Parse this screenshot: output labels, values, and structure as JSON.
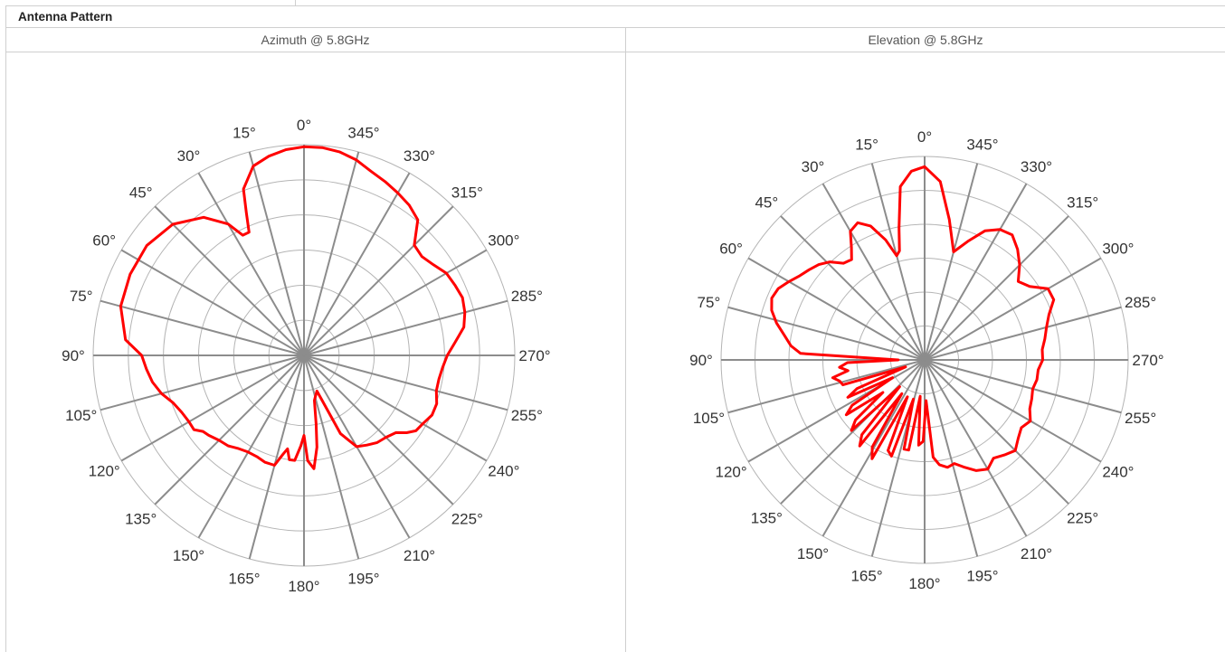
{
  "section": {
    "title": "Antenna Pattern"
  },
  "columns": [
    {
      "title": "Azimuth @ 5.8GHz"
    },
    {
      "title": "Elevation @ 5.8GHz"
    }
  ],
  "colors": {
    "pattern": "#ff0000",
    "spoke": "#8c8c8c",
    "ring": "#b4b4b4",
    "grid_border": "#cfcfcf"
  },
  "chart_data": [
    {
      "type": "polar-line",
      "title": "Azimuth @ 5.8GHz",
      "angle_labels": [
        "0°",
        "15°",
        "30°",
        "45°",
        "60°",
        "75°",
        "90°",
        "105°",
        "120°",
        "135°",
        "150°",
        "165°",
        "180°",
        "195°",
        "210°",
        "225°",
        "240°",
        "255°",
        "270°",
        "285°",
        "300°",
        "315°",
        "330°",
        "345°"
      ],
      "angle_direction": "clockwise-labels-counterclockwise",
      "rings": 6,
      "radial_range": [
        0,
        1
      ],
      "series": [
        {
          "angles": [
            0,
            5,
            10,
            15,
            20,
            22,
            24,
            27,
            30,
            36,
            45,
            55,
            65,
            75,
            85,
            90,
            95,
            100,
            105,
            110,
            115,
            120,
            124,
            127,
            130,
            135,
            140,
            145,
            150,
            155,
            160,
            165,
            168,
            170,
            172,
            175,
            178,
            180,
            182,
            185,
            188,
            190,
            193,
            196,
            200,
            205,
            210,
            215,
            220,
            225,
            230,
            233,
            236,
            240,
            245,
            250,
            255,
            260,
            265,
            270,
            275,
            280,
            285,
            290,
            295,
            300,
            305,
            310,
            315,
            320,
            325,
            330,
            335,
            340,
            345,
            350,
            355,
            360
          ],
          "values": [
            0.99,
            0.98,
            0.96,
            0.93,
            0.84,
            0.73,
            0.64,
            0.64,
            0.72,
            0.81,
            0.88,
            0.91,
            0.91,
            0.9,
            0.85,
            0.77,
            0.75,
            0.73,
            0.7,
            0.66,
            0.64,
            0.63,
            0.63,
            0.6,
            0.59,
            0.57,
            0.56,
            0.54,
            0.53,
            0.53,
            0.54,
            0.54,
            0.48,
            0.45,
            0.5,
            0.5,
            0.43,
            0.38,
            0.5,
            0.54,
            0.44,
            0.33,
            0.22,
            0.2,
            0.18,
            0.41,
            0.5,
            0.52,
            0.54,
            0.55,
            0.57,
            0.61,
            0.64,
            0.65,
            0.67,
            0.67,
            0.65,
            0.65,
            0.66,
            0.68,
            0.72,
            0.77,
            0.79,
            0.8,
            0.79,
            0.78,
            0.75,
            0.73,
            0.74,
            0.84,
            0.87,
            0.89,
            0.91,
            0.93,
            0.96,
            0.98,
            0.99,
            0.99
          ]
        }
      ]
    },
    {
      "type": "polar-line",
      "title": "Elevation @ 5.8GHz",
      "angle_labels": [
        "0°",
        "15°",
        "30°",
        "45°",
        "60°",
        "75°",
        "90°",
        "105°",
        "120°",
        "135°",
        "150°",
        "165°",
        "180°",
        "195°",
        "210°",
        "225°",
        "240°",
        "255°",
        "270°",
        "285°",
        "300°",
        "315°",
        "330°",
        "345°"
      ],
      "angle_direction": "clockwise-labels-counterclockwise",
      "rings": 6,
      "radial_range": [
        0,
        1
      ],
      "series": [
        {
          "angles": [
            0,
            4,
            8,
            11,
            13,
            15,
            18,
            22,
            26,
            30,
            33,
            36,
            40,
            44,
            48,
            52,
            56,
            60,
            64,
            68,
            72,
            76,
            80,
            84,
            87,
            90,
            92,
            95,
            98,
            101,
            104,
            107,
            110,
            113,
            116,
            119,
            122,
            125,
            128,
            131,
            134,
            137,
            140,
            143,
            146,
            149,
            152,
            155,
            158,
            161,
            164,
            167,
            170,
            173,
            176,
            179,
            182,
            185,
            188,
            192,
            196,
            200,
            205,
            210,
            215,
            220,
            225,
            230,
            235,
            240,
            245,
            250,
            255,
            260,
            265,
            270,
            275,
            280,
            285,
            290,
            295,
            300,
            305,
            310,
            315,
            320,
            325,
            330,
            335,
            340,
            345,
            350,
            355,
            360
          ],
          "values": [
            0.95,
            0.93,
            0.86,
            0.66,
            0.55,
            0.53,
            0.62,
            0.71,
            0.75,
            0.73,
            0.66,
            0.61,
            0.62,
            0.67,
            0.7,
            0.72,
            0.74,
            0.77,
            0.8,
            0.81,
            0.79,
            0.75,
            0.7,
            0.66,
            0.61,
            0.13,
            0.38,
            0.42,
            0.38,
            0.46,
            0.43,
            0.42,
            0.1,
            0.36,
            0.42,
            0.18,
            0.42,
            0.47,
            0.26,
            0.45,
            0.5,
            0.18,
            0.48,
            0.53,
            0.2,
            0.5,
            0.55,
            0.2,
            0.48,
            0.5,
            0.2,
            0.45,
            0.45,
            0.18,
            0.42,
            0.4,
            0.2,
            0.48,
            0.52,
            0.54,
            0.53,
            0.56,
            0.6,
            0.62,
            0.59,
            0.61,
            0.63,
            0.6,
            0.58,
            0.6,
            0.57,
            0.56,
            0.55,
            0.56,
            0.56,
            0.58,
            0.58,
            0.6,
            0.62,
            0.65,
            0.7,
            0.7,
            0.63,
            0.6,
            0.66,
            0.71,
            0.75,
            0.74,
            0.7,
            0.62,
            0.55,
            0.7,
            0.88,
            0.95
          ]
        }
      ]
    }
  ]
}
